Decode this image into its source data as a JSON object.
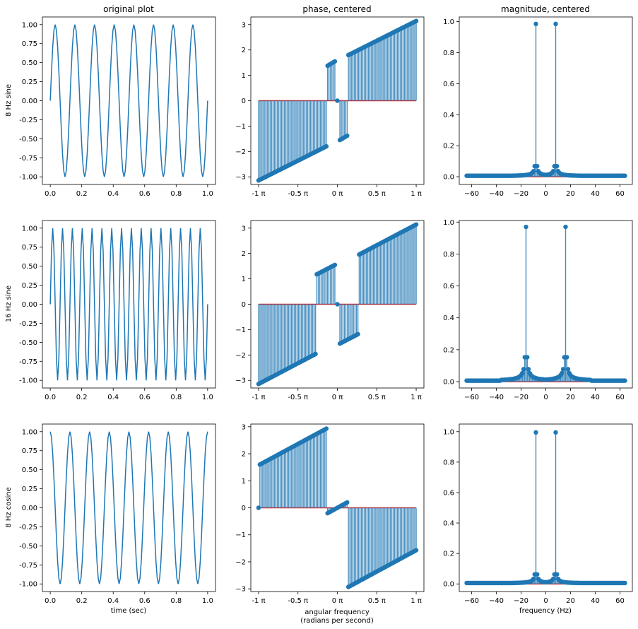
{
  "figure": {
    "col_titles": [
      "original plot",
      "phase, centered",
      "magnitude, centered"
    ],
    "row_labels": [
      "8 Hz sine",
      "16 Hz sine",
      "8 Hz cosine"
    ],
    "xlabels": [
      "time (sec)",
      "angular frequency",
      "frequency (Hz)"
    ],
    "xlabel_second_line": "(radians per second)",
    "colors": {
      "line": "#1f77b4",
      "baseline": "#d62728",
      "fill": "#1f77b4"
    }
  },
  "chart_data": [
    {
      "panel": "r0c0",
      "type": "line",
      "signal": "sin",
      "freq_hz": 8,
      "x_range": [
        0,
        1
      ],
      "xlim": [
        -0.05,
        1.05
      ],
      "ylim": [
        -1.1,
        1.1
      ],
      "xticks": [
        0.0,
        0.2,
        0.4,
        0.6,
        0.8,
        1.0
      ],
      "xtick_labels": [
        "0.0",
        "0.2",
        "0.4",
        "0.6",
        "0.8",
        "1.0"
      ],
      "yticks": [
        -1.0,
        -0.75,
        -0.5,
        -0.25,
        0.0,
        0.25,
        0.5,
        0.75,
        1.0
      ],
      "ytick_labels": [
        "-1.00",
        "-0.75",
        "-0.50",
        "-0.25",
        "0.00",
        "0.25",
        "0.50",
        "0.75",
        "1.00"
      ]
    },
    {
      "panel": "r0c1",
      "type": "stem",
      "xlim": [
        -3.45,
        3.45
      ],
      "ylim": [
        -3.3,
        3.3
      ],
      "segments": [
        {
          "x": [
            -3.14159,
            -0.44
          ],
          "y": [
            -3.14159,
            -1.8
          ],
          "count": 48
        },
        {
          "x": [
            -0.39,
            -0.1
          ],
          "y": [
            1.38,
            1.55
          ],
          "count": 6
        },
        {
          "x": [
            0.0,
            0.0
          ],
          "y": [
            0.0,
            0.0
          ],
          "count": 1
        },
        {
          "x": [
            0.1,
            0.39
          ],
          "y": [
            -1.55,
            -1.38
          ],
          "count": 6
        },
        {
          "x": [
            0.44,
            3.14159
          ],
          "y": [
            1.8,
            3.14159
          ],
          "count": 48
        }
      ],
      "xticks": [
        -3.14159,
        -1.5708,
        0,
        1.5708,
        3.14159
      ],
      "xtick_labels": [
        "-1 π",
        "-0.5 π",
        "0 π",
        "0.5 π",
        "1 π"
      ],
      "yticks": [
        -3,
        -2,
        -1,
        0,
        1,
        2,
        3
      ],
      "ytick_labels": [
        "−3",
        "−2",
        "−1",
        "0",
        "1",
        "2",
        "3"
      ]
    },
    {
      "panel": "r0c2",
      "type": "stem",
      "xlim": [
        -70,
        70
      ],
      "ylim": [
        -0.05,
        1.03
      ],
      "peaks": [
        {
          "x": -8,
          "y": 0.985
        },
        {
          "x": 8,
          "y": 0.985
        }
      ],
      "sidelobe_at_peak": 0.065,
      "xticks": [
        -60,
        -40,
        -20,
        0,
        20,
        40,
        60
      ],
      "xtick_labels": [
        "−60",
        "−40",
        "−20",
        "0",
        "20",
        "40",
        "60"
      ],
      "yticks": [
        0.0,
        0.2,
        0.4,
        0.6,
        0.8,
        1.0
      ],
      "ytick_labels": [
        "0.0",
        "0.2",
        "0.4",
        "0.6",
        "0.8",
        "1.0"
      ]
    },
    {
      "panel": "r1c0",
      "type": "line",
      "signal": "sin",
      "freq_hz": 16,
      "x_range": [
        0,
        1
      ],
      "xlim": [
        -0.05,
        1.05
      ],
      "ylim": [
        -1.1,
        1.1
      ],
      "xticks": [
        0.0,
        0.2,
        0.4,
        0.6,
        0.8,
        1.0
      ],
      "xtick_labels": [
        "0.0",
        "0.2",
        "0.4",
        "0.6",
        "0.8",
        "1.0"
      ],
      "yticks": [
        -1.0,
        -0.75,
        -0.5,
        -0.25,
        0.0,
        0.25,
        0.5,
        0.75,
        1.0
      ],
      "ytick_labels": [
        "-1.00",
        "-0.75",
        "-0.50",
        "-0.25",
        "0.00",
        "0.25",
        "0.50",
        "0.75",
        "1.00"
      ]
    },
    {
      "panel": "r1c1",
      "type": "stem",
      "xlim": [
        -3.45,
        3.45
      ],
      "ylim": [
        -3.3,
        3.3
      ],
      "segments": [
        {
          "x": [
            -3.14159,
            -0.87
          ],
          "y": [
            -3.14159,
            -1.96
          ],
          "count": 41
        },
        {
          "x": [
            -0.82,
            -0.1
          ],
          "y": [
            1.18,
            1.55
          ],
          "count": 13
        },
        {
          "x": [
            0.0,
            0.0
          ],
          "y": [
            0.0,
            0.0
          ],
          "count": 1
        },
        {
          "x": [
            0.1,
            0.82
          ],
          "y": [
            -1.55,
            -1.18
          ],
          "count": 13
        },
        {
          "x": [
            0.87,
            3.14159
          ],
          "y": [
            1.96,
            3.14159
          ],
          "count": 41
        }
      ],
      "xticks": [
        -3.14159,
        -1.5708,
        0,
        1.5708,
        3.14159
      ],
      "xtick_labels": [
        "-1 π",
        "-0.5 π",
        "0 π",
        "0.5 π",
        "1 π"
      ],
      "yticks": [
        -3,
        -2,
        -1,
        0,
        1,
        2,
        3
      ],
      "ytick_labels": [
        "−3",
        "−2",
        "−1",
        "0",
        "1",
        "2",
        "3"
      ]
    },
    {
      "panel": "r1c2",
      "type": "stem",
      "xlim": [
        -70,
        70
      ],
      "ylim": [
        -0.04,
        1.01
      ],
      "peaks": [
        {
          "x": -16,
          "y": 0.97
        },
        {
          "x": 16,
          "y": 0.97
        }
      ],
      "sidelobe_at_peak": 0.15,
      "xticks": [
        -60,
        -40,
        -20,
        0,
        20,
        40,
        60
      ],
      "xtick_labels": [
        "−60",
        "−40",
        "−20",
        "0",
        "20",
        "40",
        "60"
      ],
      "yticks": [
        0.0,
        0.2,
        0.4,
        0.6,
        0.8,
        1.0
      ],
      "ytick_labels": [
        "0.0",
        "0.2",
        "0.4",
        "0.6",
        "0.8",
        "1.0"
      ]
    },
    {
      "panel": "r2c0",
      "type": "line",
      "signal": "cos",
      "freq_hz": 8,
      "x_range": [
        0,
        1
      ],
      "xlim": [
        -0.05,
        1.05
      ],
      "ylim": [
        -1.1,
        1.1
      ],
      "xticks": [
        0.0,
        0.2,
        0.4,
        0.6,
        0.8,
        1.0
      ],
      "xtick_labels": [
        "0.0",
        "0.2",
        "0.4",
        "0.6",
        "0.8",
        "1.0"
      ],
      "yticks": [
        -1.0,
        -0.75,
        -0.5,
        -0.25,
        0.0,
        0.25,
        0.5,
        0.75,
        1.0
      ],
      "ytick_labels": [
        "-1.00",
        "-0.75",
        "-0.50",
        "-0.25",
        "0.00",
        "0.25",
        "0.50",
        "0.75",
        "1.00"
      ]
    },
    {
      "panel": "r2c1",
      "type": "stem",
      "xlim": [
        -3.45,
        3.45
      ],
      "ylim": [
        -3.1,
        3.1
      ],
      "segments": [
        {
          "x": [
            -3.14159,
            -3.14159
          ],
          "y": [
            0.0,
            0.0
          ],
          "count": 1
        },
        {
          "x": [
            -3.09,
            -0.44
          ],
          "y": [
            1.6,
            2.93
          ],
          "count": 47
        },
        {
          "x": [
            -0.39,
            0.39
          ],
          "y": [
            -0.2,
            0.2
          ],
          "count": 14
        },
        {
          "x": [
            0.44,
            3.14159
          ],
          "y": [
            -2.93,
            -1.57
          ],
          "count": 48
        }
      ],
      "xticks": [
        -3.14159,
        -1.5708,
        0,
        1.5708,
        3.14159
      ],
      "xtick_labels": [
        "-1 π",
        "-0.5 π",
        "0 π",
        "0.5 π",
        "1 π"
      ],
      "yticks": [
        -3,
        -2,
        -1,
        0,
        1,
        2,
        3
      ],
      "ytick_labels": [
        "−3",
        "−2",
        "−1",
        "0",
        "1",
        "2",
        "3"
      ]
    },
    {
      "panel": "r2c2",
      "type": "stem",
      "xlim": [
        -70,
        70
      ],
      "ylim": [
        -0.05,
        1.05
      ],
      "peaks": [
        {
          "x": -8,
          "y": 0.995
        },
        {
          "x": 8,
          "y": 0.995
        }
      ],
      "sidelobe_at_peak": 0.06,
      "xticks": [
        -60,
        -40,
        -20,
        0,
        20,
        40,
        60
      ],
      "xtick_labels": [
        "−60",
        "−40",
        "−20",
        "0",
        "20",
        "40",
        "60"
      ],
      "yticks": [
        0.0,
        0.2,
        0.4,
        0.6,
        0.8,
        1.0
      ],
      "ytick_labels": [
        "0.0",
        "0.2",
        "0.4",
        "0.6",
        "0.8",
        "1.0"
      ]
    }
  ]
}
